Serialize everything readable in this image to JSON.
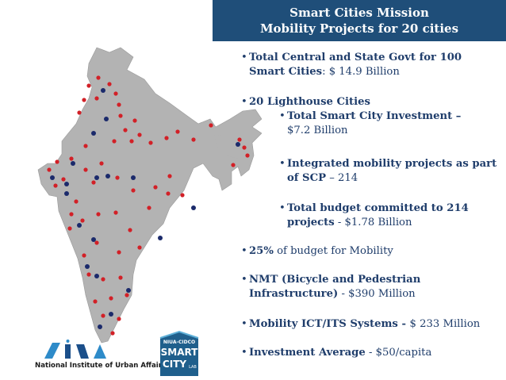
{
  "header": {
    "line1": "Smart Cities Mission",
    "line2": "Mobility Projects  for 20 cities"
  },
  "bullets": [
    {
      "bold": "Total Central and State Govt for 100 Smart Cities",
      "normal": ": $ 14.9 Billion"
    },
    {
      "bold": "20 Lighthouse Cities",
      "normal": ""
    },
    {
      "bold": "Total Smart City Investment – ",
      "normal": "$7.2 Billion"
    },
    {
      "bold": "Integrated mobility projects as part of SCP",
      "normal": "  – 214"
    },
    {
      "bold": "Total budget committed to 214 projects",
      "normal": "  - $1.78 Billion"
    },
    {
      "bold": "25%",
      "normal": " of budget for Mobility"
    },
    {
      "bold": "NMT  (Bicycle and Pedestrian Infrastructure)",
      "normal": " - $390 Million"
    },
    {
      "bold": "Mobility ICT/ITS Systems - ",
      "normal": "$ 233 Million"
    },
    {
      "bold": "Investment Average",
      "normal": " - $50/capita"
    }
  ],
  "logos": {
    "niua_caption": "National Institute of Urban Affairs",
    "smart_top": "NIUA-CIDCO",
    "smart_line1": "SMART",
    "smart_line2": "CITY",
    "smart_line3": "LAB"
  },
  "colors": {
    "header_bg": "#1f4e79",
    "text": "#1f3d6b",
    "map": "#b3b3b3",
    "red_dot": "#d22027",
    "blue_dot": "#1b2a6b"
  }
}
